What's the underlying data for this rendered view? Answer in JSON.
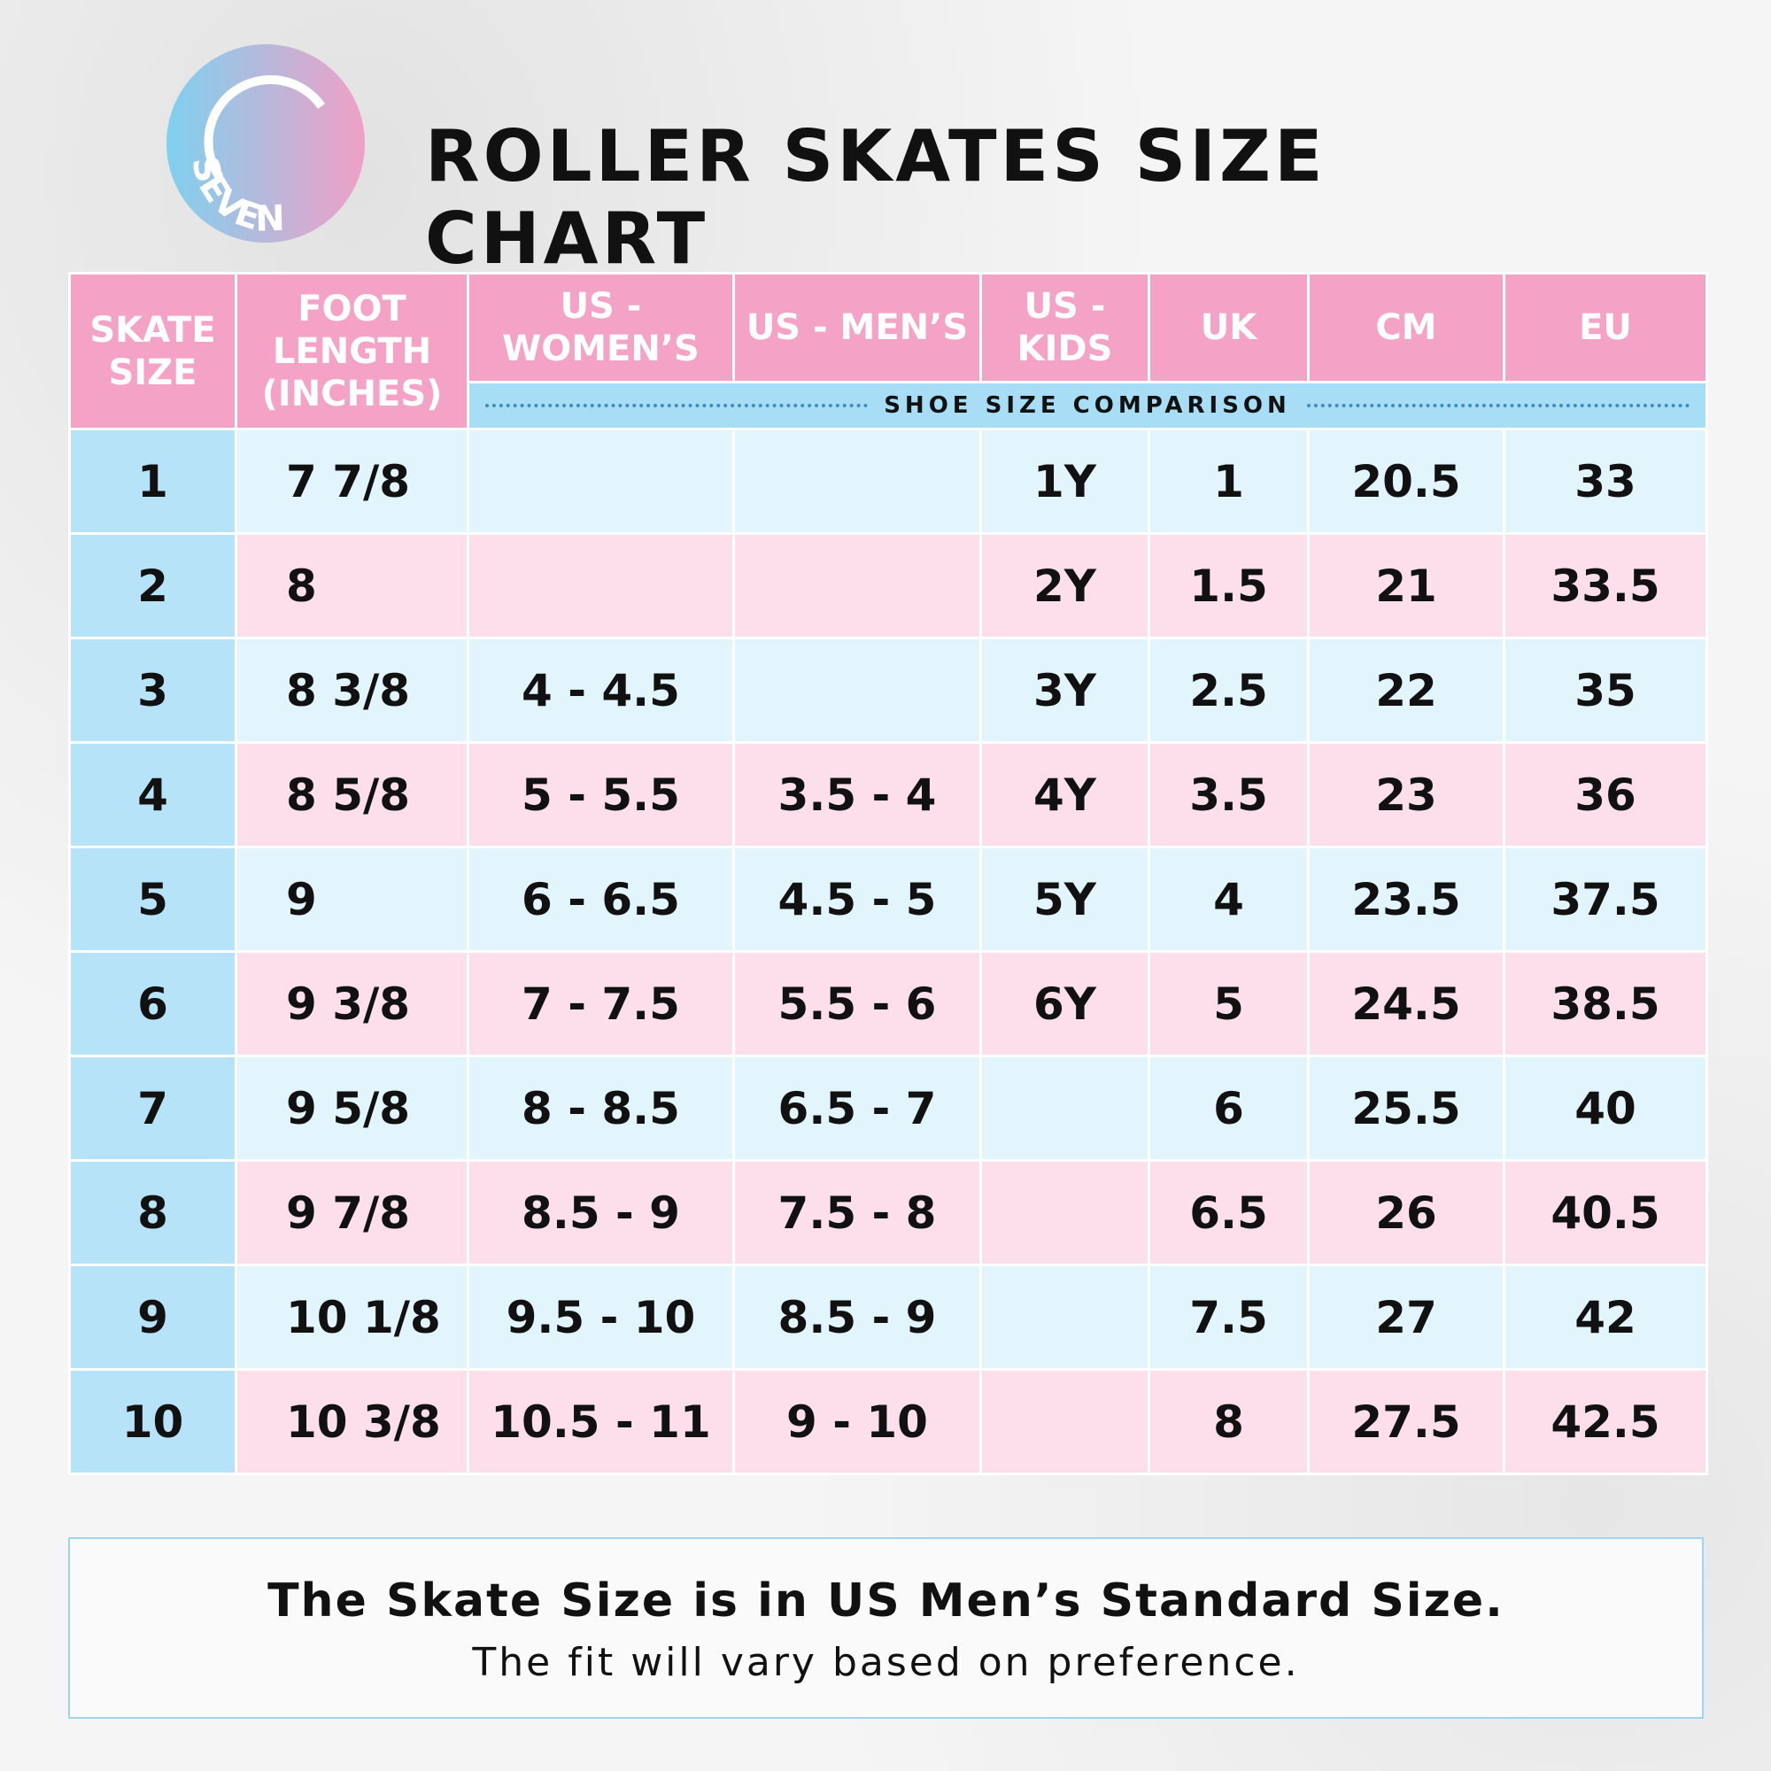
{
  "logo": {
    "text": "SEVEN"
  },
  "header": {
    "title": "ROLLER SKATES SIZE CHART"
  },
  "table": {
    "columns": [
      "SKATE SIZE",
      "FOOT LENGTH (INCHES)",
      "US - WOMEN’S",
      "US - MEN’S",
      "US - KIDS",
      "UK",
      "CM",
      "EU"
    ],
    "subheader": "SHOE SIZE COMPARISON",
    "rows": [
      [
        "1",
        "7 7/8",
        null,
        null,
        "1Y",
        "1",
        "20.5",
        "33"
      ],
      [
        "2",
        "8",
        null,
        null,
        "2Y",
        "1.5",
        "21",
        "33.5"
      ],
      [
        "3",
        "8 3/8",
        "4 - 4.5",
        null,
        "3Y",
        "2.5",
        "22",
        "35"
      ],
      [
        "4",
        "8 5/8",
        "5 - 5.5",
        "3.5 - 4",
        "4Y",
        "3.5",
        "23",
        "36"
      ],
      [
        "5",
        "9",
        "6 - 6.5",
        "4.5 - 5",
        "5Y",
        "4",
        "23.5",
        "37.5"
      ],
      [
        "6",
        "9 3/8",
        "7 - 7.5",
        "5.5 - 6",
        "6Y",
        "5",
        "24.5",
        "38.5"
      ],
      [
        "7",
        "9 5/8",
        "8 - 8.5",
        "6.5 - 7",
        null,
        "6",
        "25.5",
        "40"
      ],
      [
        "8",
        "9 7/8",
        "8.5 - 9",
        "7.5 - 8",
        null,
        "6.5",
        "26",
        "40.5"
      ],
      [
        "9",
        "10 1/8",
        "9.5 - 10",
        "8.5 - 9",
        null,
        "7.5",
        "27",
        "42"
      ],
      [
        "10",
        "10 3/8",
        "10.5 - 11",
        "9 - 10",
        null,
        "8",
        "27.5",
        "42.5"
      ]
    ]
  },
  "footer": {
    "line1": "The Skate Size is in US Men’s Standard Size.",
    "line2": "The fit will vary based on preference."
  }
}
